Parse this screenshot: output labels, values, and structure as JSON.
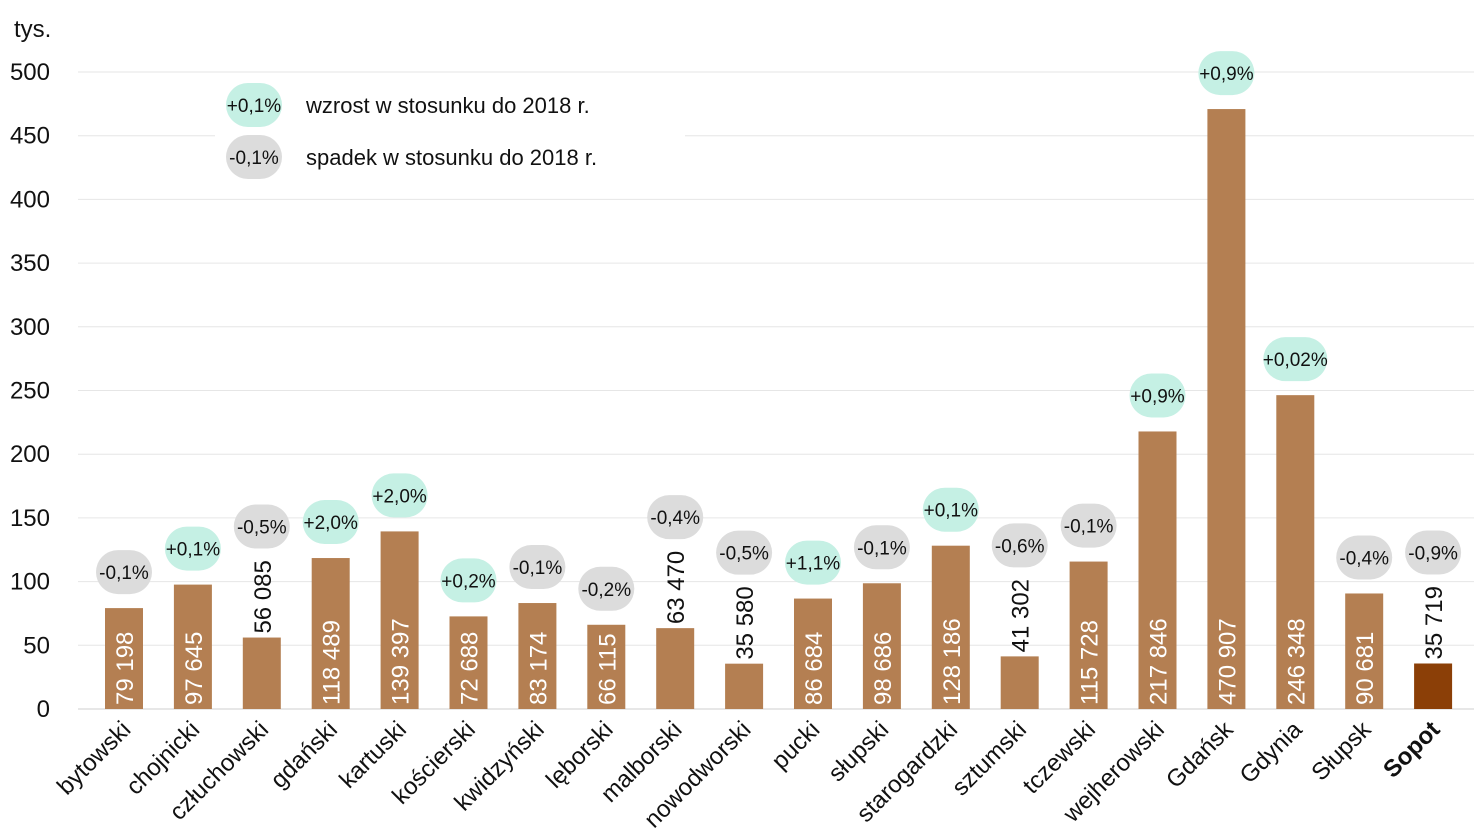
{
  "chart_data": {
    "type": "bar",
    "unit_label": "tys.",
    "ylim": [
      0,
      500
    ],
    "yticks": [
      0,
      50,
      100,
      150,
      200,
      250,
      300,
      350,
      400,
      450,
      500
    ],
    "grid": true,
    "legend_position": "top-left",
    "legend": [
      {
        "badge": "+0,1%",
        "text": "wzrost w stosunku do 2018 r.",
        "kind": "up"
      },
      {
        "badge": "-0,1%",
        "text": "spadek w stosunku do 2018 r.",
        "kind": "down"
      }
    ],
    "categories": [
      "bytowski",
      "chojnicki",
      "człuchowski",
      "gdański",
      "kartuski",
      "kościerski",
      "kwidzyński",
      "lęborski",
      "malborski",
      "nowodworski",
      "pucki",
      "słupski",
      "starogardzki",
      "sztumski",
      "tczewski",
      "wejherowski",
      "Gdańsk",
      "Gdynia",
      "Słupsk",
      "Sopot"
    ],
    "values": [
      79198,
      97645,
      56085,
      118489,
      139397,
      72688,
      83174,
      66115,
      63470,
      35580,
      86684,
      98686,
      128186,
      41302,
      115728,
      217846,
      470907,
      246348,
      90681,
      35719
    ],
    "value_labels": [
      "79 198",
      "97 645",
      "56 085",
      "118 489",
      "139 397",
      "72 688",
      "83 174",
      "66 115",
      "63 470",
      "35 580",
      "86 684",
      "98 686",
      "128 186",
      "41 302",
      "115 728",
      "217 846",
      "470 907",
      "246 348",
      "90 681",
      "35 719"
    ],
    "changes": [
      "-0,1%",
      "+0,1%",
      "-0,5%",
      "+2,0%",
      "+2,0%",
      "+0,2%",
      "-0,1%",
      "-0,2%",
      "-0,4%",
      "-0,5%",
      "+1,1%",
      "-0,1%",
      "+0,1%",
      "-0,6%",
      "-0,1%",
      "+0,9%",
      "+0,9%",
      "+0,02%",
      "-0,4%",
      "-0,9%"
    ],
    "highlight_category": "Sopot",
    "colors": {
      "bar": "#b47f52",
      "bar_highlight": "#8b3f07",
      "badge_up": "#c5f0e4",
      "badge_down": "#dcdcdc",
      "grid": "#e6e6e6",
      "text": "#111111"
    }
  }
}
